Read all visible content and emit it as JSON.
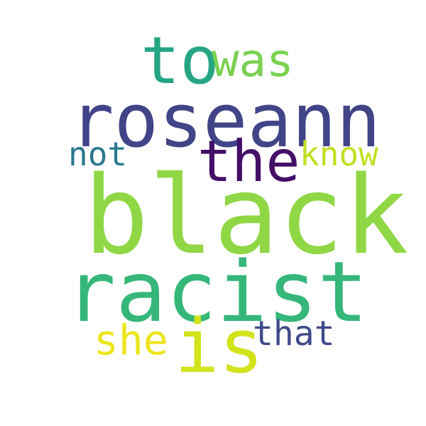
{
  "words": [
    {
      "text": "to",
      "color": "#26a584"
    },
    {
      "text": "was",
      "color": "#7ad151"
    },
    {
      "text": "roseann",
      "color": "#414487"
    },
    {
      "text": "the",
      "color": "#440f67"
    },
    {
      "text": "not",
      "color": "#2a788e"
    },
    {
      "text": "know",
      "color": "#c2df23"
    },
    {
      "text": "black",
      "color": "#8fd744"
    },
    {
      "text": "racist",
      "color": "#35b779"
    },
    {
      "text": "she",
      "color": "#ece51b"
    },
    {
      "text": "is",
      "color": "#d2e21b"
    },
    {
      "text": "that",
      "color": "#3e4a89"
    }
  ]
}
